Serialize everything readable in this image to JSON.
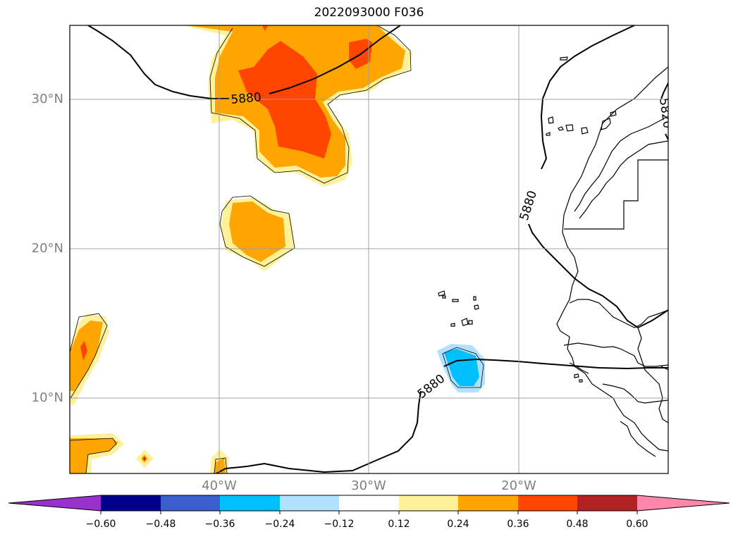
{
  "title": "2022093000 F036",
  "map": {
    "lat_labels": [
      "30°N",
      "20°N",
      "10°N"
    ],
    "lon_labels": [
      "40°W",
      "30°W",
      "20°W"
    ],
    "contour_labels": [
      "5880",
      "5880",
      "5880",
      "5820"
    ]
  },
  "colorbar": {
    "ticks": [
      "−0.60",
      "−0.48",
      "−0.36",
      "−0.24",
      "−0.12",
      "0.12",
      "0.24",
      "0.36",
      "0.48",
      "0.60"
    ],
    "colors": [
      "#9932cc",
      "#00008b",
      "#3a5fcd",
      "#00bfff",
      "#b0e2ff",
      "#ffffff",
      "#fff09a",
      "#ffa500",
      "#ff4500",
      "#b22222",
      "#ff88aa"
    ]
  },
  "field_colors": {
    "light_yellow": "#fff09a",
    "orange": "#ffa500",
    "orange_red": "#ff4500",
    "dark_red": "#b22222",
    "light_blue": "#b0e2ff",
    "deep_sky_blue": "#00bfff"
  }
}
